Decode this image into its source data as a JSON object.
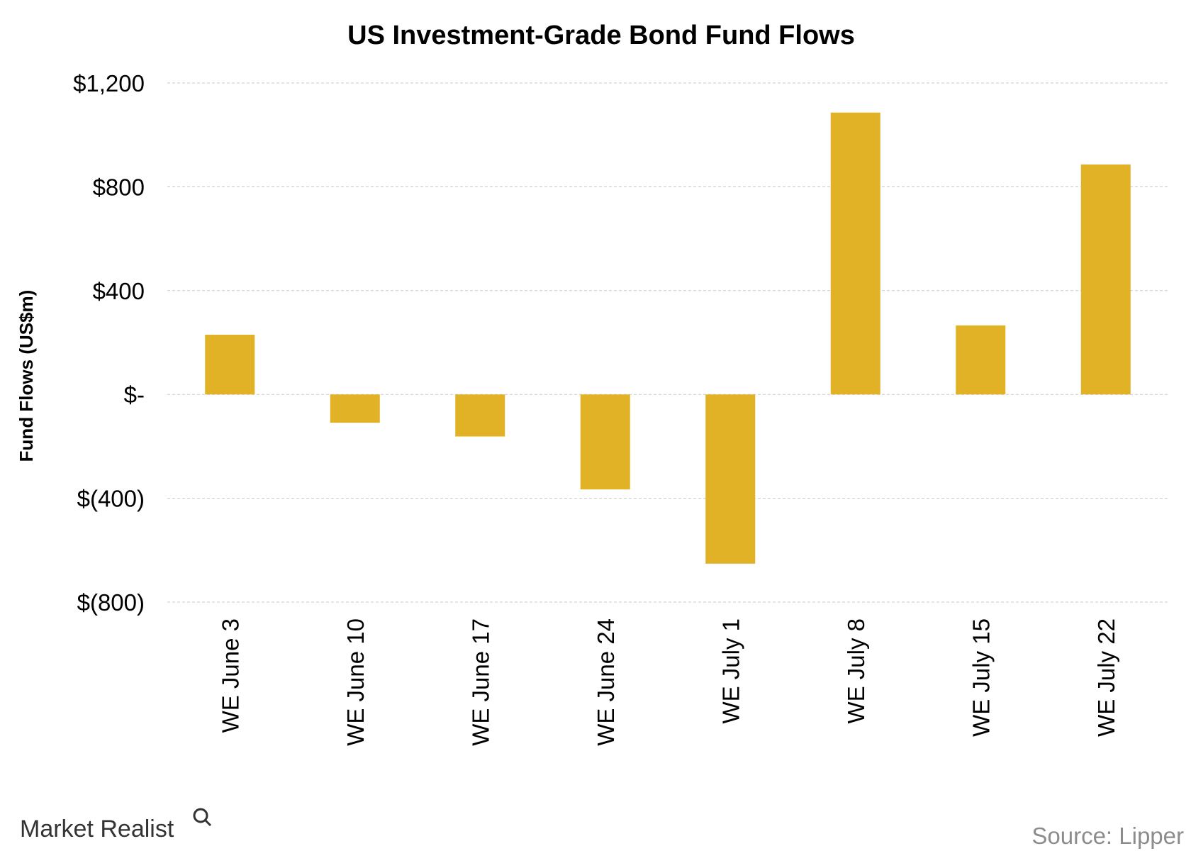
{
  "chart_data": {
    "type": "bar",
    "title": "US Investment-Grade Bond Fund Flows",
    "xlabel": "",
    "ylabel": "Fund Flows (US$m)",
    "ylim": [
      -800,
      1200
    ],
    "yticks": [
      1200,
      800,
      400,
      0,
      -400,
      -800
    ],
    "ytick_labels": [
      "$1,200",
      "$800",
      "$400",
      "$-",
      "$(400)",
      "$(800)"
    ],
    "grid": true,
    "categories": [
      "WE June 3",
      "WE June 10",
      "WE June 17",
      "WE June 24",
      "WE July 1",
      "WE July 8",
      "WE July 15",
      "WE July 22"
    ],
    "values": [
      230,
      -109,
      -162,
      -366,
      -652,
      1086,
      266,
      886
    ],
    "bar_color": "#E1B126"
  },
  "footer": {
    "logo": "Market Realist",
    "source": "Source: Lipper"
  }
}
